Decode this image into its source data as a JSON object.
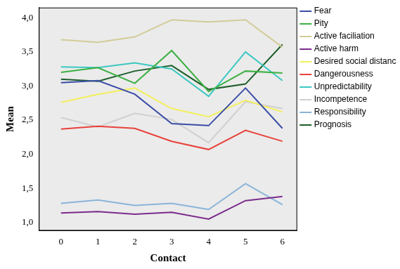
{
  "chart_data": {
    "type": "line",
    "x_label": "Contact",
    "y_label": "Mean",
    "x": [
      0,
      1,
      2,
      3,
      4,
      5,
      6
    ],
    "xlim": [
      -0.6,
      6.4
    ],
    "xticks": [
      0,
      1,
      2,
      3,
      4,
      5,
      6
    ],
    "ylim": [
      0.88,
      4.15
    ],
    "yticks": [
      {
        "value": 1.0,
        "label": "1,0"
      },
      {
        "value": 1.5,
        "label": "1,5"
      },
      {
        "value": 2.0,
        "label": "2,0"
      },
      {
        "value": 2.5,
        "label": "2,5"
      },
      {
        "value": 3.0,
        "label": "3,0"
      },
      {
        "value": 3.5,
        "label": "3,5"
      },
      {
        "value": 4.0,
        "label": "4,0"
      }
    ],
    "grid": false,
    "legend": "right",
    "series": [
      {
        "name": "Fear",
        "color": "#3a4ca6",
        "values": [
          3.05,
          3.08,
          2.88,
          2.45,
          2.42,
          2.97,
          2.38
        ]
      },
      {
        "name": "Pity",
        "color": "#3cb043",
        "values": [
          3.2,
          3.27,
          3.04,
          3.52,
          2.92,
          3.22,
          3.19
        ]
      },
      {
        "name": "Active faciliation",
        "color": "#d2cc98",
        "values": [
          3.68,
          3.64,
          3.72,
          3.97,
          3.94,
          3.97,
          3.57
        ]
      },
      {
        "name": "Active harm",
        "color": "#7b2c8c",
        "values": [
          1.14,
          1.16,
          1.12,
          1.15,
          1.05,
          1.32,
          1.38
        ]
      },
      {
        "name": "Desired social distance",
        "color": "#f2ef5e",
        "values": [
          2.76,
          2.88,
          2.97,
          2.67,
          2.55,
          2.79,
          2.62
        ]
      },
      {
        "name": "Dangerousness",
        "color": "#e8423a",
        "values": [
          2.37,
          2.41,
          2.38,
          2.19,
          2.07,
          2.35,
          2.19
        ]
      },
      {
        "name": "Unpredictability",
        "color": "#3cc8c0",
        "values": [
          3.28,
          3.27,
          3.34,
          3.25,
          2.85,
          3.5,
          3.08
        ]
      },
      {
        "name": "Incompetence",
        "color": "#d0d0d0",
        "values": [
          2.54,
          2.4,
          2.6,
          2.51,
          2.17,
          2.77,
          2.67
        ]
      },
      {
        "name": "Responsibility",
        "color": "#8ab4d9",
        "values": [
          1.28,
          1.33,
          1.25,
          1.28,
          1.19,
          1.57,
          1.26
        ]
      },
      {
        "name": "Prognosis",
        "color": "#1c5e2a",
        "values": [
          3.1,
          3.07,
          3.22,
          3.3,
          2.95,
          3.03,
          3.61
        ]
      }
    ]
  }
}
